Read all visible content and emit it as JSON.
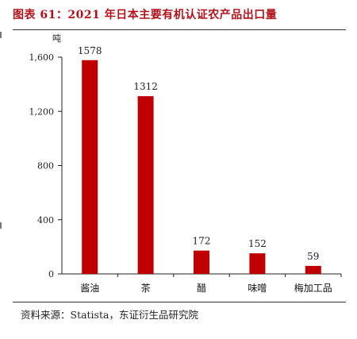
{
  "title": "图表 61：2021 年日本主要有机认证农产品出口量",
  "source": "资料来源：Statista，东证衍生品研究院",
  "colors": {
    "bar": "#c00000",
    "title": "#b3121b",
    "axis": "#222222"
  },
  "chart_data": {
    "type": "bar",
    "categories": [
      "酱油",
      "茶",
      "醋",
      "味噌",
      "梅加工品"
    ],
    "values": [
      1578,
      1312,
      172,
      152,
      59
    ],
    "data_labels": [
      "1578",
      "1312",
      "172",
      "152",
      "59"
    ],
    "yunit": "吨",
    "yticks": [
      0,
      400,
      800,
      1200,
      1600
    ],
    "ytick_labels": [
      "0",
      "400",
      "800",
      "1,200",
      "1,600"
    ],
    "ylim": [
      0,
      1600
    ],
    "grid": false,
    "legend": "none"
  }
}
